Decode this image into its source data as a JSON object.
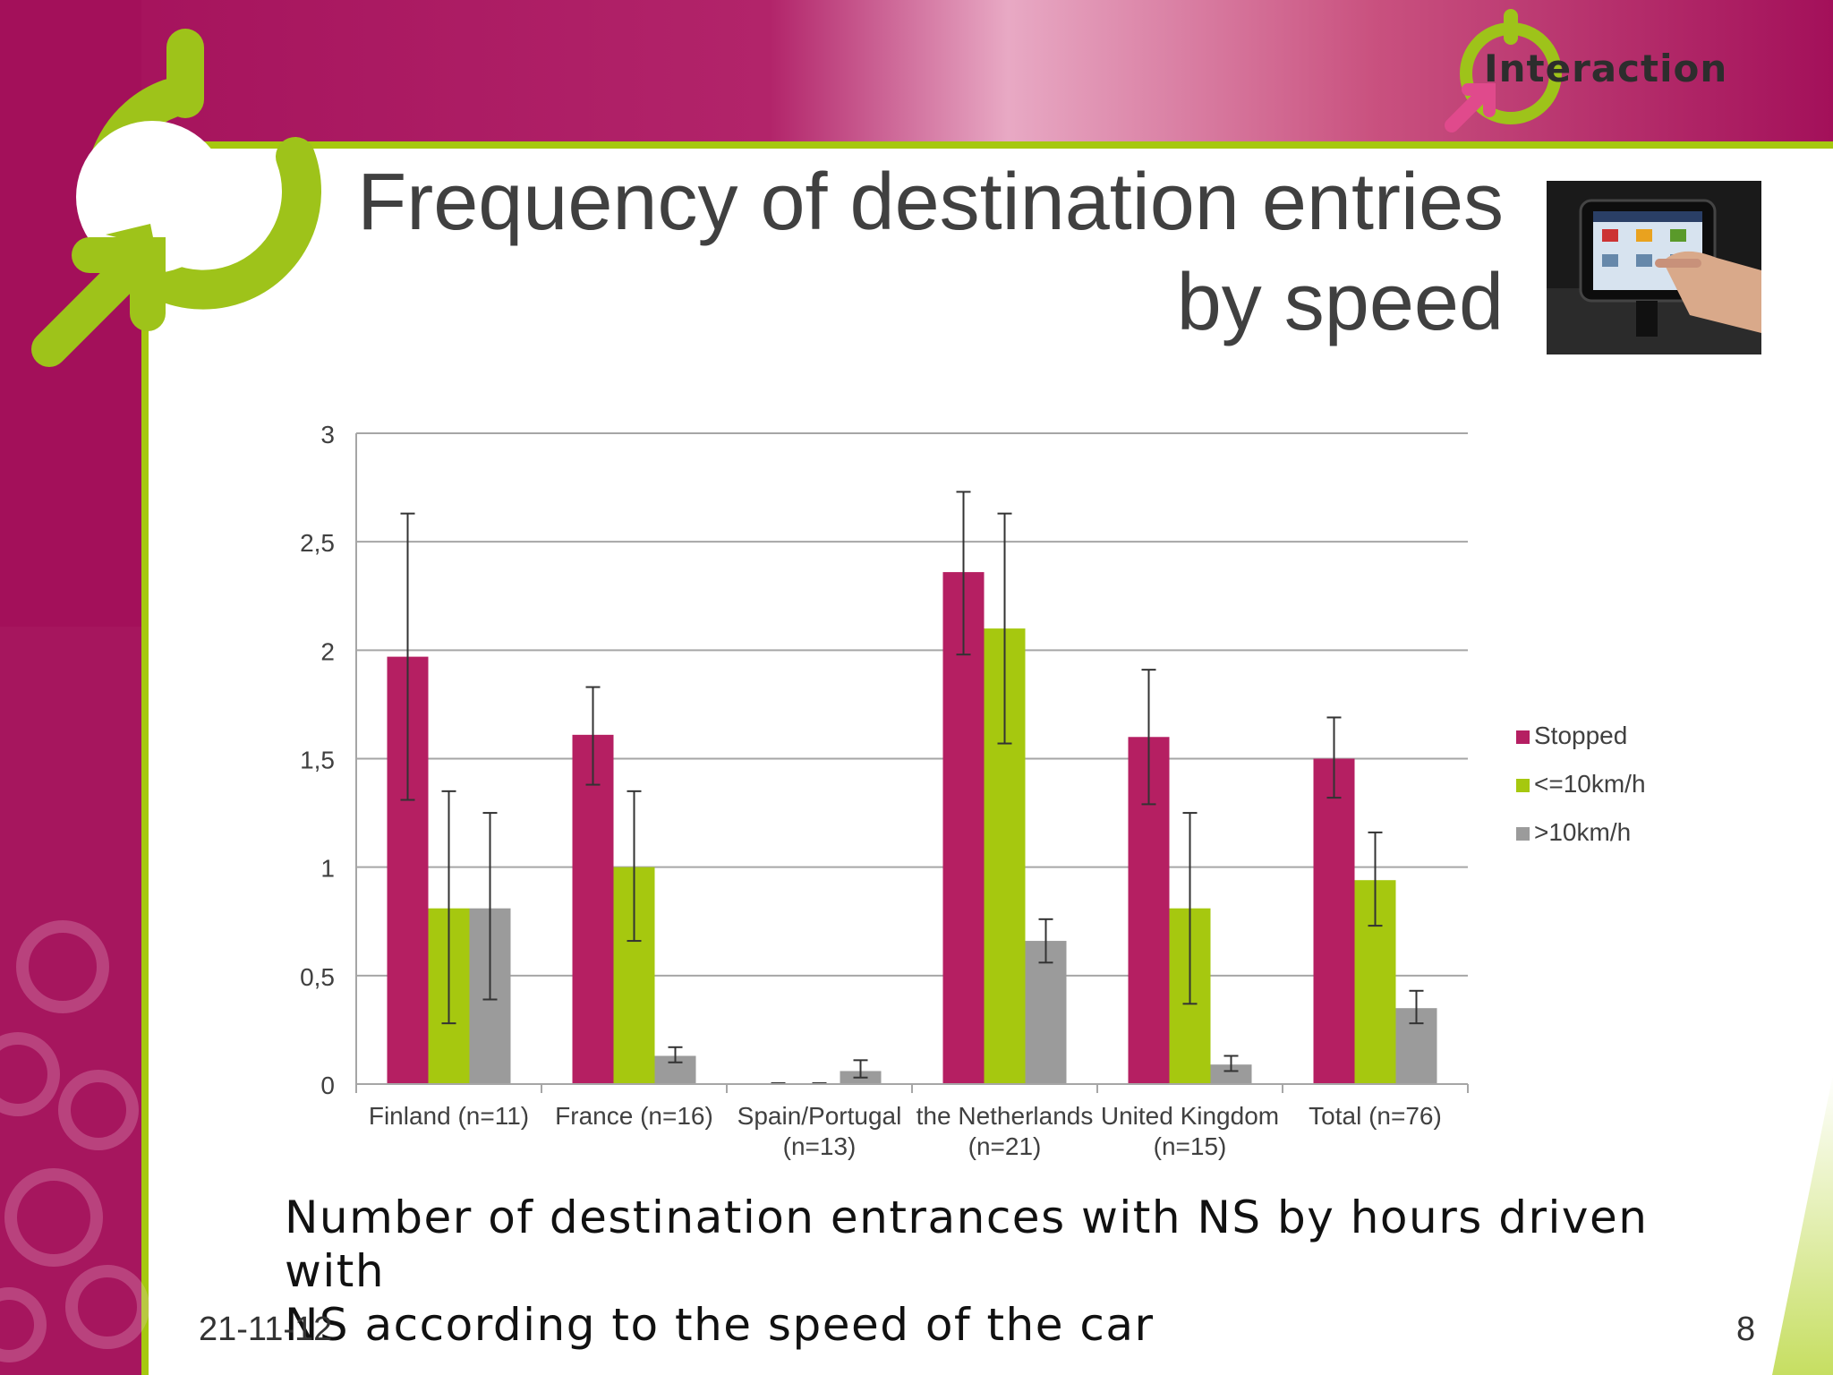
{
  "slide": {
    "title_line1": "Frequency of destination entries",
    "title_line2": "by speed",
    "logo_text": "Interaction",
    "caption_line1": "Number of destination entrances with NS by hours driven with",
    "caption_line2": "NS according to the speed of the car",
    "date": "21-11-12",
    "page_number": "8",
    "colors": {
      "magenta": "#b51f62",
      "green": "#a6c80f",
      "gray": "#9b9b9b"
    }
  },
  "chart_data": {
    "type": "bar",
    "title": "",
    "xlabel": "",
    "ylabel": "",
    "ylim": [
      0,
      3
    ],
    "yticks": [
      "0",
      "0,5",
      "1",
      "1,5",
      "2",
      "2,5",
      "3"
    ],
    "ytick_values": [
      0,
      0.5,
      1,
      1.5,
      2,
      2.5,
      3
    ],
    "grid": true,
    "legend_position": "right",
    "categories": [
      [
        "Finland (n=11)"
      ],
      [
        "France (n=16)"
      ],
      [
        "Spain/Portugal",
        "(n=13)"
      ],
      [
        "the Netherlands",
        "(n=21)"
      ],
      [
        "United Kingdom",
        "(n=15)"
      ],
      [
        "Total (n=76)"
      ]
    ],
    "series": [
      {
        "name": "Stopped",
        "color": "#b51f62",
        "values": [
          1.97,
          1.61,
          0,
          2.36,
          1.6,
          1.5
        ],
        "err_low": [
          1.31,
          1.38,
          0,
          1.98,
          1.29,
          1.32
        ],
        "err_high": [
          2.63,
          1.83,
          0,
          2.73,
          1.91,
          1.69
        ]
      },
      {
        "name": "<=10km/h",
        "color": "#a6c80f",
        "values": [
          0.81,
          1.0,
          0,
          2.1,
          0.81,
          0.94
        ],
        "err_low": [
          0.28,
          0.66,
          0,
          1.57,
          0.37,
          0.73
        ],
        "err_high": [
          1.35,
          1.35,
          0,
          2.63,
          1.25,
          1.16
        ]
      },
      {
        "name": ">10km/h",
        "color": "#9b9b9b",
        "values": [
          0.81,
          0.13,
          0.06,
          0.66,
          0.09,
          0.35
        ],
        "err_low": [
          0.39,
          0.1,
          0.03,
          0.56,
          0.06,
          0.28
        ],
        "err_high": [
          1.25,
          0.17,
          0.11,
          0.76,
          0.13,
          0.43
        ]
      }
    ]
  }
}
